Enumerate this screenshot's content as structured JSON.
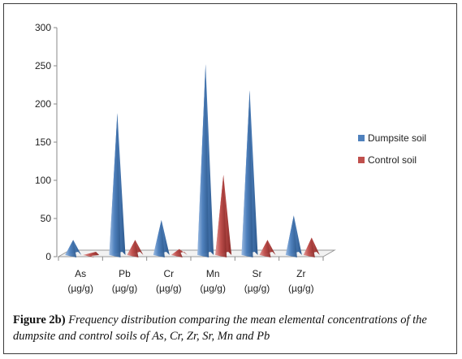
{
  "chart_data": {
    "type": "bar",
    "categories": [
      "As (µg/g)",
      "Pb (µg/g)",
      "Cr (µg/g)",
      "Mn (µg/g)",
      "Sr (µg/g)",
      "Zr (µg/g)"
    ],
    "category_lines": [
      [
        "As",
        "(µg/g)"
      ],
      [
        "Pb",
        "(µg/g)"
      ],
      [
        "Cr",
        "(µg/g)"
      ],
      [
        "Mn",
        "(µg/g)"
      ],
      [
        "Sr",
        "(µg/g)"
      ],
      [
        "Zr",
        "(µg/g)"
      ]
    ],
    "series": [
      {
        "name": "Dumpsite soil",
        "values": [
          22,
          188,
          48,
          252,
          218,
          54
        ],
        "color": "#4f81bd"
      },
      {
        "name": "Control soil",
        "values": [
          1,
          22,
          10,
          107,
          22,
          25
        ],
        "color": "#c0504d"
      }
    ],
    "ylim": [
      0,
      300
    ],
    "yticks": [
      0,
      50,
      100,
      150,
      200,
      250,
      300
    ],
    "grid": false,
    "legend_position": "right",
    "mark_shape": "pyramid-3d"
  },
  "caption": {
    "label": "Figure 2b)",
    "text": "Frequency distribution comparing the mean elemental concentrations of the dumpsite and control soils of As, Cr, Zr, Sr, Mn and Pb"
  }
}
